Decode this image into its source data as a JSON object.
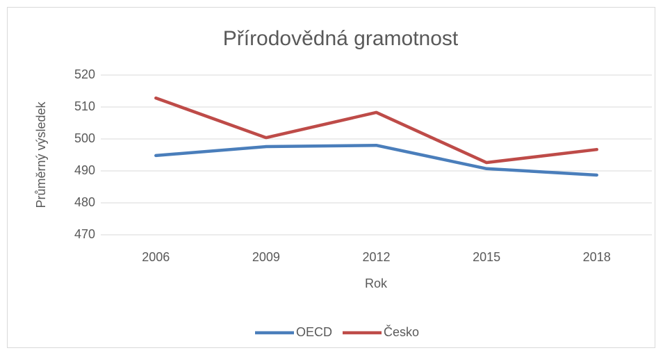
{
  "chart_data": {
    "type": "line",
    "title": "Přírodovědná gramotnost",
    "x_label": "Rok",
    "y_label": "Průměrný výsledek",
    "categories": [
      "2006",
      "2009",
      "2012",
      "2015",
      "2018"
    ],
    "series": [
      {
        "name": "OECD",
        "color": "#4a7ebb",
        "values": [
          494.8,
          497.6,
          498.0,
          490.7,
          488.7
        ]
      },
      {
        "name": "Česko",
        "color": "#be4b48",
        "values": [
          512.8,
          500.4,
          508.3,
          492.6,
          496.7
        ]
      }
    ],
    "ylim": [
      470,
      520
    ],
    "yticks": [
      470,
      480,
      490,
      500,
      510,
      520
    ],
    "grid": true,
    "legend": "bottom"
  }
}
